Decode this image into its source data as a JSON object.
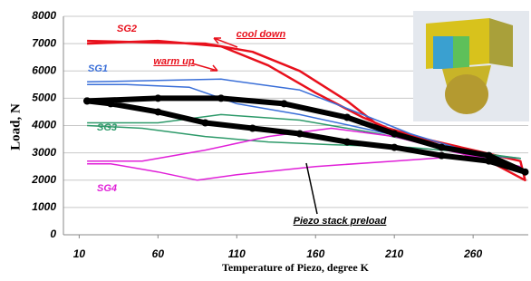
{
  "chart_data": {
    "type": "line",
    "x_label": "Temperature of Piezo, degree K",
    "y_label": "Load, N",
    "xlim": [
      0,
      295
    ],
    "xticks": [
      10,
      60,
      110,
      160,
      210,
      260
    ],
    "ylim": [
      0,
      8000
    ],
    "yticks": [
      0,
      1000,
      2000,
      3000,
      4000,
      5000,
      6000,
      7000,
      8000
    ],
    "grid": true,
    "annotations": [
      "cool down",
      "warm up"
    ],
    "series": [
      {
        "name": "SG2",
        "color": "#e8101c",
        "linewidth": 2.5,
        "x": [
          15,
          50,
          90,
          120,
          150,
          180,
          200,
          230,
          260,
          290,
          293,
          270,
          240,
          210,
          190,
          160,
          130,
          100,
          60,
          15
        ],
        "values": [
          7100,
          7050,
          7000,
          6700,
          6000,
          4900,
          4000,
          3500,
          3100,
          2700,
          2000,
          2700,
          3200,
          3800,
          4300,
          5200,
          6200,
          6900,
          7100,
          7000
        ]
      },
      {
        "name": "SG1",
        "color": "#3a6fd8",
        "linewidth": 1.5,
        "x": [
          15,
          60,
          100,
          150,
          190,
          220,
          260,
          290,
          270,
          230,
          190,
          150,
          110,
          80,
          40,
          15
        ],
        "values": [
          5600,
          5650,
          5700,
          5300,
          4400,
          3700,
          3000,
          2800,
          2900,
          3400,
          3900,
          4400,
          4800,
          5400,
          5500,
          5500
        ]
      },
      {
        "name": "SG3",
        "color": "#2e9a6a",
        "linewidth": 1.5,
        "x": [
          15,
          60,
          100,
          150,
          200,
          250,
          290,
          260,
          220,
          170,
          130,
          90,
          50,
          15
        ],
        "values": [
          4100,
          4100,
          4400,
          4200,
          3700,
          3100,
          2800,
          3000,
          3200,
          3300,
          3400,
          3600,
          3900,
          4000
        ]
      },
      {
        "name": "SG4",
        "color": "#e020d8",
        "linewidth": 1.5,
        "x": [
          15,
          50,
          90,
          130,
          170,
          210,
          250,
          290,
          260,
          210,
          160,
          110,
          85,
          60,
          30,
          15
        ],
        "values": [
          2700,
          2700,
          3100,
          3600,
          3900,
          3600,
          3000,
          2500,
          2900,
          2700,
          2500,
          2200,
          2000,
          2300,
          2600,
          2600
        ]
      },
      {
        "name": "Piezo stack preload",
        "color": "#000000",
        "linewidth": 6,
        "markers": true,
        "x": [
          15,
          60,
          100,
          140,
          180,
          210,
          240,
          270,
          293,
          270,
          240,
          210,
          180,
          150,
          120,
          90,
          60,
          30,
          15
        ],
        "values": [
          4900,
          5000,
          5000,
          4800,
          4300,
          3700,
          3200,
          2900,
          2300,
          2700,
          2900,
          3200,
          3400,
          3700,
          3900,
          4100,
          4500,
          4800,
          4900
        ]
      }
    ]
  }
}
